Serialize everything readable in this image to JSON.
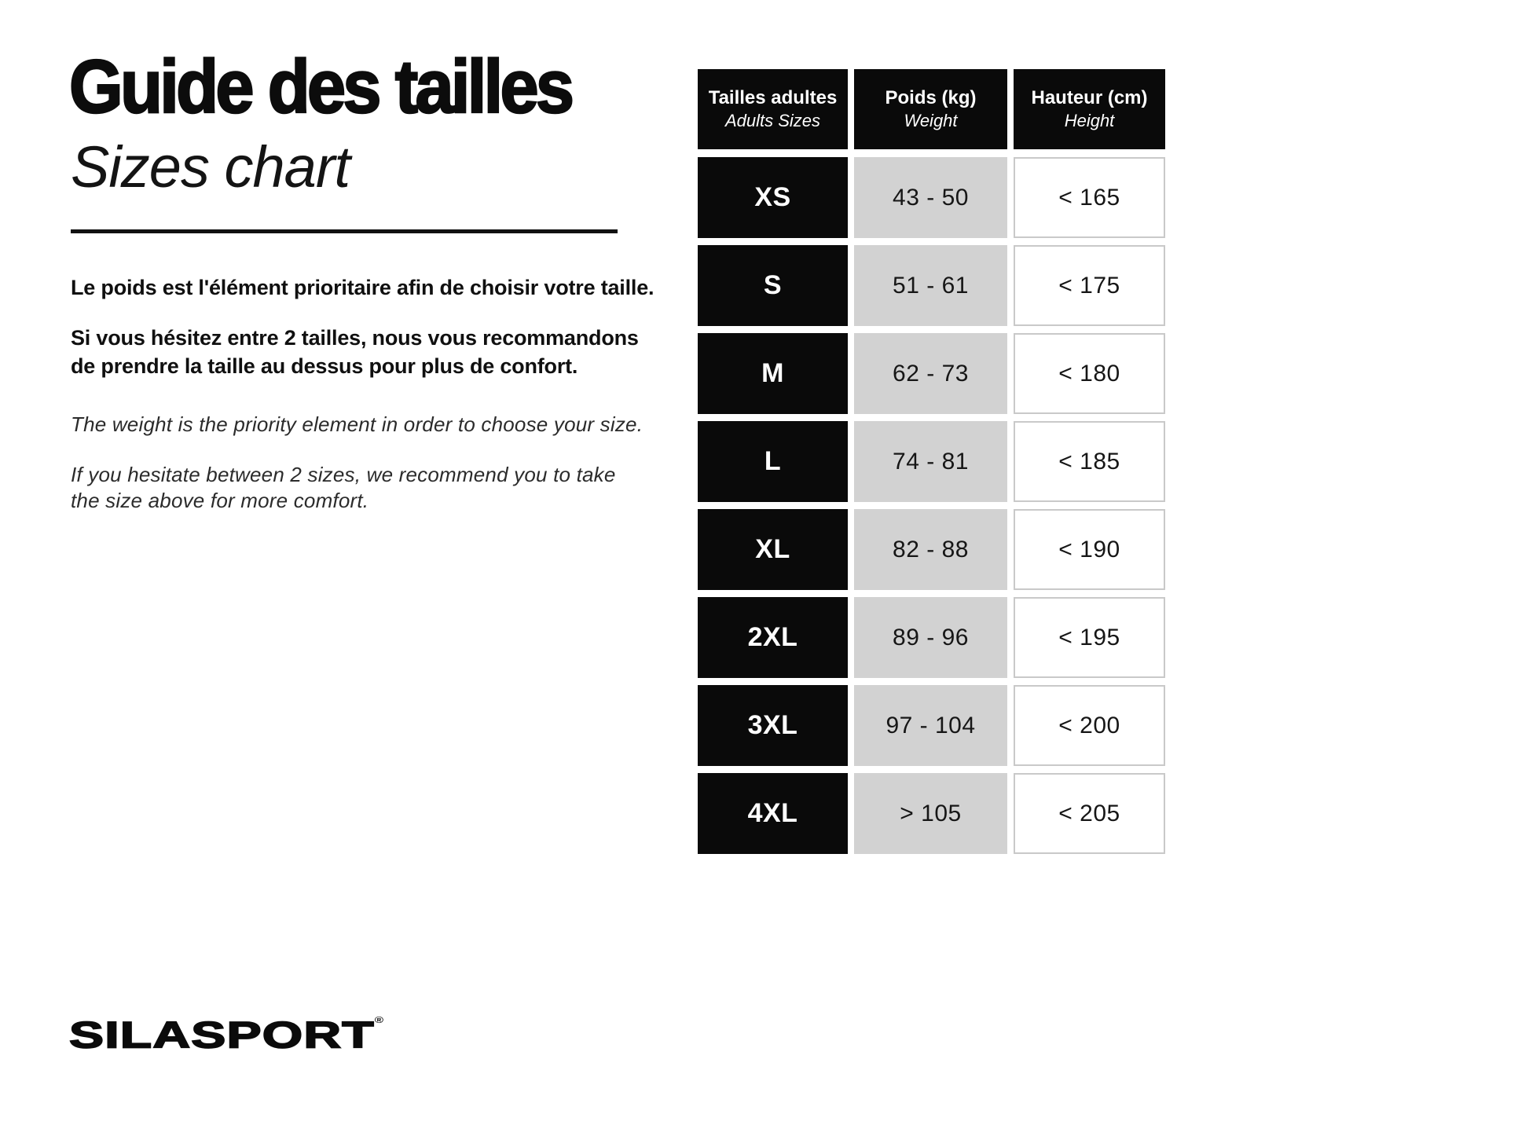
{
  "page": {
    "title_fr": "Guide des tailles",
    "title_en": "Sizes chart"
  },
  "intro": {
    "fr_p1": "Le poids est l'élément prioritaire afin de choisir votre taille.",
    "fr_p2": "Si vous hésitez entre 2 tailles, nous vous recommandons\nde prendre la taille au dessus pour plus de confort.",
    "en_p1": "The weight is the priority element in order to choose your size.",
    "en_p2": "If you hesitate between 2 sizes, we recommend you to take\nthe size above for more comfort."
  },
  "table": {
    "headers": [
      {
        "fr": "Tailles adultes",
        "en": "Adults Sizes"
      },
      {
        "fr": "Poids (kg)",
        "en": "Weight"
      },
      {
        "fr": "Hauteur (cm)",
        "en": "Height"
      }
    ],
    "rows": [
      {
        "size": "XS",
        "weight": "43 - 50",
        "height": "< 165"
      },
      {
        "size": "S",
        "weight": "51 - 61",
        "height": "< 175"
      },
      {
        "size": "M",
        "weight": "62 - 73",
        "height": "< 180"
      },
      {
        "size": "L",
        "weight": "74 - 81",
        "height": "< 185"
      },
      {
        "size": "XL",
        "weight": "82 - 88",
        "height": "< 190"
      },
      {
        "size": "2XL",
        "weight": "89 - 96",
        "height": "< 195"
      },
      {
        "size": "3XL",
        "weight": "97 - 104",
        "height": "< 200"
      },
      {
        "size": "4XL",
        "weight": "> 105",
        "height": "< 205"
      }
    ]
  },
  "brand": {
    "logo_text": "SILASPORT",
    "registered": "®"
  },
  "colors": {
    "cell_black": "#0a0a0a",
    "cell_gray": "#d2d2d2",
    "cell_white_border": "#c9c9c9",
    "text_black": "#111111",
    "background": "#ffffff"
  }
}
